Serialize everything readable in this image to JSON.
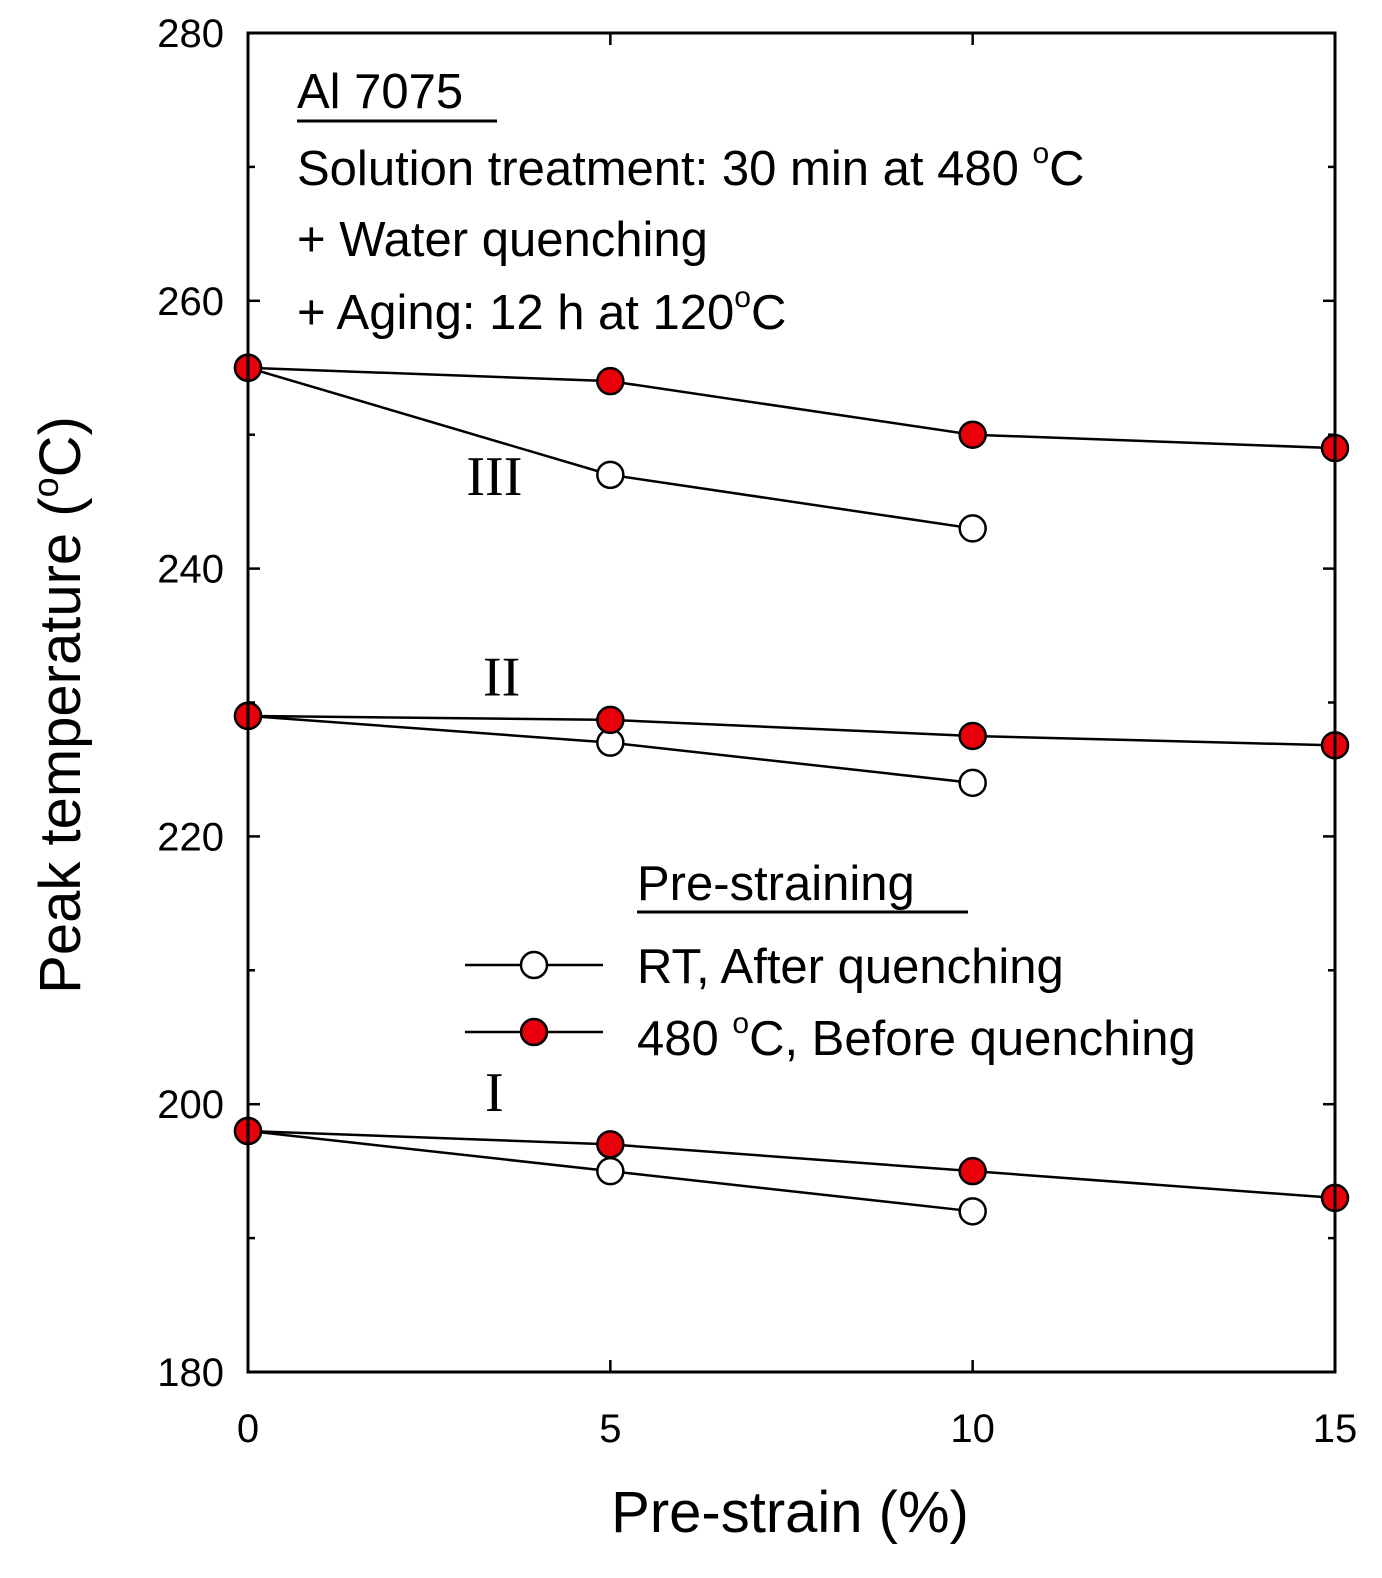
{
  "chart_data": {
    "type": "line",
    "xlabel": "Pre-strain (%)",
    "ylabel": "Peak temperature (°C)",
    "ylabel_parts": {
      "pre": "Peak temperature (",
      "sup": "o",
      "post": "C)"
    },
    "xlim": [
      0,
      15
    ],
    "ylim": [
      180,
      280
    ],
    "x_ticks": [
      0,
      5,
      10,
      15
    ],
    "y_ticks": [
      180,
      200,
      220,
      240,
      260,
      280
    ],
    "y_minor_ticks": [
      190,
      210,
      230,
      250,
      270
    ],
    "annotations": {
      "material": "Al 7075",
      "line1": {
        "pre": "Solution treatment: 30 min at 480 ",
        "sup": "o",
        "post": "C"
      },
      "line2": "+ Water quenching",
      "line3": {
        "pre": "+ Aging: 12 h at 120",
        "sup": "o",
        "post": "C"
      }
    },
    "peak_labels": [
      {
        "label": "III",
        "x": 3.4,
        "y": 247
      },
      {
        "label": "II",
        "x": 3.5,
        "y": 232
      },
      {
        "label": "I",
        "x": 3.4,
        "y": 201
      }
    ],
    "legend": {
      "title": "Pre-straining",
      "entries": [
        {
          "text": "RT, After quenching",
          "marker": "open-circle"
        },
        {
          "pre": "480 ",
          "sup": "o",
          "post": "C, Before quenching",
          "marker": "filled-circle"
        }
      ]
    },
    "series": [
      {
        "name": "RT, After quenching",
        "peak": "III",
        "marker": "open",
        "x": [
          0,
          5,
          10
        ],
        "y": [
          255,
          247,
          243
        ]
      },
      {
        "name": "480 °C, Before quenching",
        "peak": "III",
        "marker": "filled",
        "x": [
          0,
          5,
          10,
          15
        ],
        "y": [
          255,
          254,
          250,
          249
        ]
      },
      {
        "name": "RT, After quenching",
        "peak": "II",
        "marker": "open",
        "x": [
          0,
          5,
          10
        ],
        "y": [
          229,
          227,
          224
        ]
      },
      {
        "name": "480 °C, Before quenching",
        "peak": "II",
        "marker": "filled",
        "x": [
          0,
          5,
          10,
          15
        ],
        "y": [
          229,
          228.7,
          227.5,
          226.8
        ]
      },
      {
        "name": "RT, After quenching",
        "peak": "I",
        "marker": "open",
        "x": [
          0,
          5,
          10
        ],
        "y": [
          198,
          195,
          192
        ]
      },
      {
        "name": "480 °C, Before quenching",
        "peak": "I",
        "marker": "filled",
        "x": [
          0,
          5,
          10,
          15
        ],
        "y": [
          198,
          197,
          195,
          193
        ]
      }
    ],
    "colors": {
      "filled_marker": "#e8000b",
      "open_marker": "#ffffff",
      "line": "#000000"
    }
  }
}
